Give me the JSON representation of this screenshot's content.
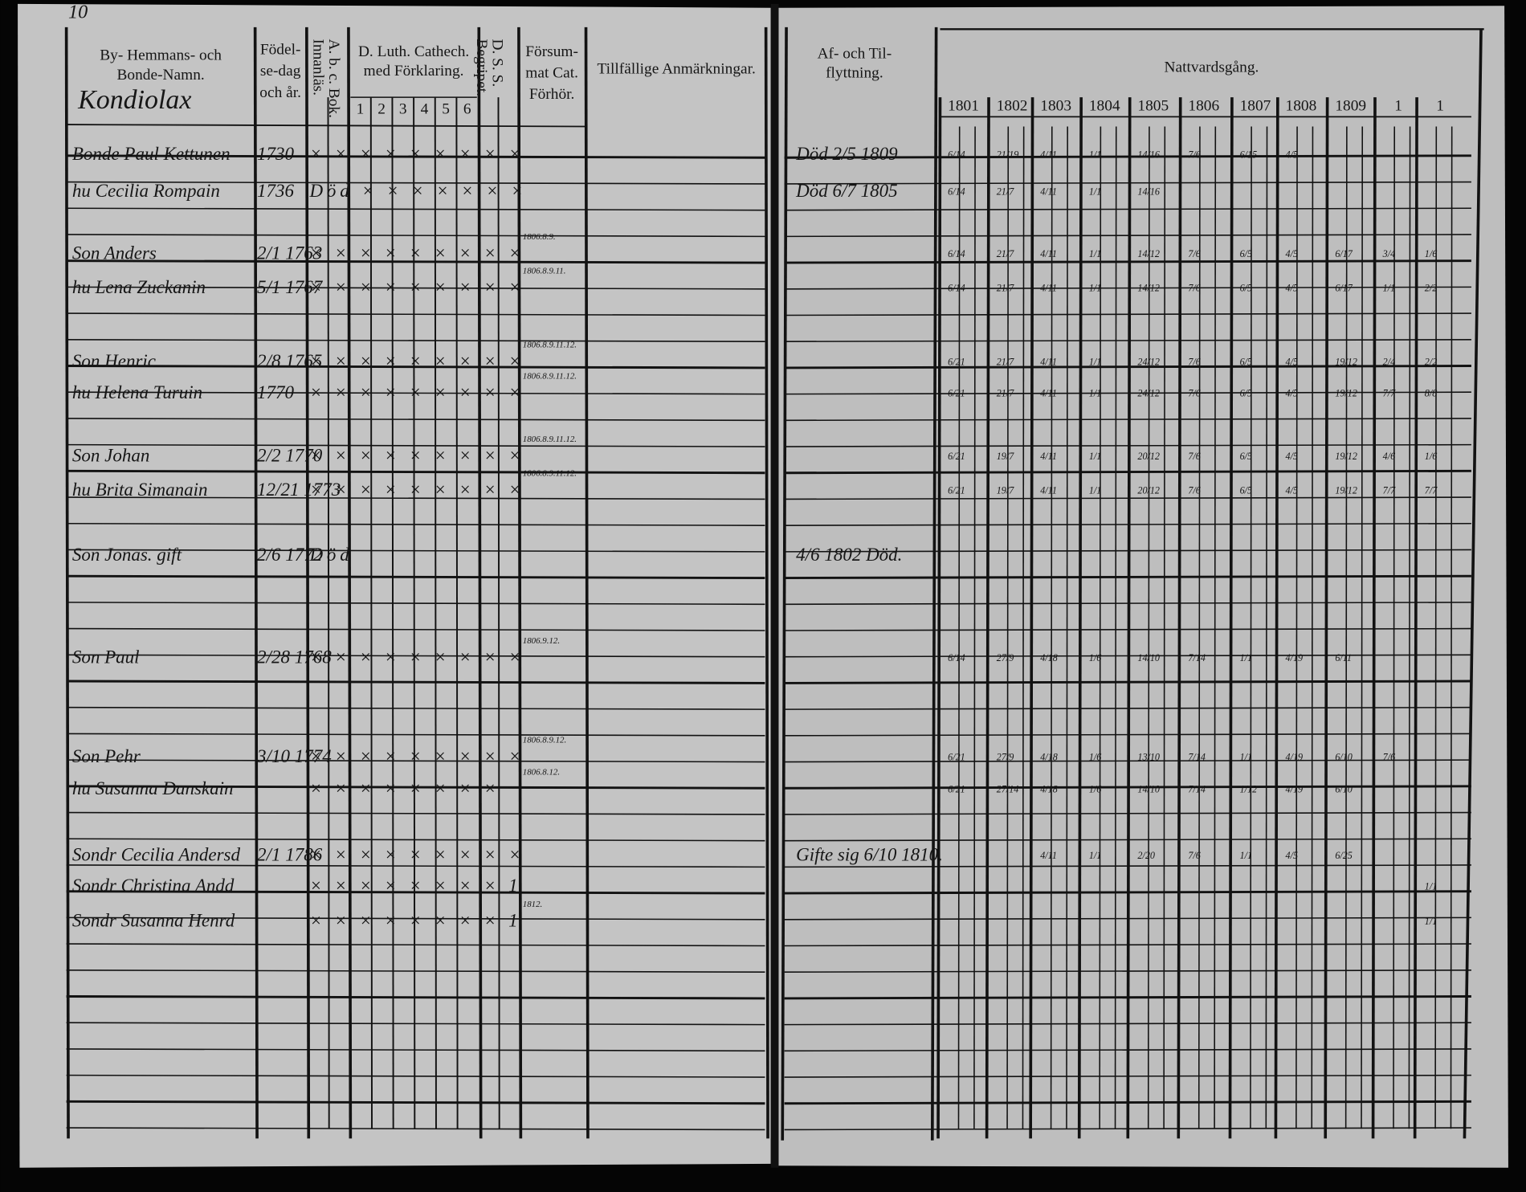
{
  "page_number": "10",
  "left_header": {
    "names": [
      "By- Hemmans- och",
      "Bonde-Namn."
    ],
    "birth": [
      "Födel-",
      "se-dag",
      "och år."
    ],
    "abc": [
      "A. b. c. Bok.",
      "Innanläs."
    ],
    "cathech": [
      "D. Luth. Cathech.",
      "med Förklaring."
    ],
    "cathech_parts": [
      "1",
      "2",
      "3",
      "4",
      "5",
      "6"
    ],
    "dss": [
      "D. S. S.",
      "Begripet."
    ],
    "forsummat": [
      "Försum-",
      "mat Cat.",
      "Förhör."
    ],
    "remarks": "Tillfällige Anmärkningar."
  },
  "right_header": {
    "moving": [
      "Af- och Til-",
      "flyttning."
    ],
    "communion": "Nattvardsgång.",
    "years": [
      "1801",
      "1802",
      "1803",
      "1804",
      "1805",
      "1806",
      "1807",
      "1808",
      "1809",
      "1",
      "1"
    ]
  },
  "village": "Kondiolax",
  "rows": [
    {
      "name": "Bonde Paul Kettunen",
      "birth": "1730",
      "marks": "× × × × × × × × ×",
      "moving": "Död 2/5 1809",
      "communion": [
        "6/14",
        "21/19",
        "4/11",
        "1/1",
        "14/16",
        "7/6",
        "6/15",
        "4/5"
      ]
    },
    {
      "name": "hu Cecilia Rompain",
      "birth": "1736",
      "marks": "Död × × × × × × ×",
      "moving": "Död 6/7 1805",
      "communion": [
        "6/14",
        "21/7",
        "4/11",
        "1/1",
        "14/16"
      ]
    },
    {
      "name": "Son Anders",
      "birth": "2/1 1763",
      "marks": "× × × × × × × × ×",
      "missed": "1806.8.9.",
      "communion": [
        "6/14",
        "21/7",
        "4/11",
        "1/1",
        "14/12",
        "7/6",
        "6/5",
        "4/5",
        "6/17",
        "3/4",
        "1/6"
      ]
    },
    {
      "name": "hu Lena Zuckanin",
      "birth": "5/1 1767",
      "marks": "× × × × × × × × ×",
      "missed": "1806.8.9.11.",
      "communion": [
        "6/14",
        "21/7",
        "4/11",
        "1/1",
        "14/12",
        "7/6",
        "6/5",
        "4/5",
        "6/17",
        "1/1",
        "2/2"
      ]
    },
    {
      "name": "Son Henric",
      "birth": "2/8 1765",
      "marks": "× × × × × × × × ×",
      "missed": "1806.8.9.11.12.",
      "communion": [
        "6/21",
        "21/7",
        "4/11",
        "1/1",
        "24/12",
        "7/6",
        "6/5",
        "4/5",
        "19/12",
        "2/4",
        "2/2"
      ]
    },
    {
      "name": "hu Helena Turuin",
      "birth": "1770",
      "marks": "× × × × × × × × ×",
      "missed": "1806.8.9.11.12.",
      "communion": [
        "6/21",
        "21/7",
        "4/11",
        "1/1",
        "24/12",
        "7/6",
        "6/5",
        "4/5",
        "19/12",
        "7/7",
        "8/8"
      ]
    },
    {
      "name": "Son Johan",
      "birth": "2/2 1770",
      "marks": "× × × × × × × × ×",
      "missed": "1806.8.9.11.12.",
      "communion": [
        "6/21",
        "19/7",
        "4/11",
        "1/1",
        "20/12",
        "7/6",
        "6/5",
        "4/5",
        "19/12",
        "4/6",
        "1/6"
      ]
    },
    {
      "name": "hu Brita Simanain",
      "birth": "12/21 1773",
      "marks": "× × × × × × × × ×",
      "missed": "1806.8.9.11.12.",
      "communion": [
        "6/21",
        "19/7",
        "4/11",
        "1/1",
        "20/12",
        "7/6",
        "6/5",
        "4/5",
        "19/12",
        "7/7",
        "7/7"
      ]
    },
    {
      "name": "Son Jonas. gift",
      "birth": "2/6 1772",
      "marks": "Död",
      "moving": "4/6 1802 Död."
    },
    {
      "name": "Son Paul",
      "birth": "2/28 1768",
      "marks": "× × × × × × × × ×",
      "missed": "1806.9.12.",
      "communion": [
        "6/14",
        "27/9",
        "4/18",
        "1/6",
        "14/10",
        "7/14",
        "1/1",
        "4/19",
        "6/11"
      ]
    },
    {
      "name": "Son Pehr",
      "birth": "3/10 1774",
      "marks": "× × × × × × × × ×",
      "missed": "1806.8.9.12.",
      "communion": [
        "6/21",
        "27/9",
        "4/18",
        "1/6",
        "13/10",
        "7/14",
        "1/1",
        "4/19",
        "6/10",
        "7/6"
      ]
    },
    {
      "name": "hu Susanna Danskain",
      "marks": "× × × × × × × ×",
      "missed": "1806.8.12.",
      "communion": [
        "6/21",
        "27/14",
        "4/18",
        "1/6",
        "14/10",
        "7/14",
        "1/12",
        "4/19",
        "6/10"
      ]
    },
    {
      "name": "Sondr Cecilia Andersd",
      "birth": "2/1 1786",
      "marks": "× × × × × × × × ×",
      "moving": "Gifte sig 6/10 1810.",
      "communion": [
        null,
        null,
        "4/11",
        "1/1",
        "2/20",
        "7/6",
        "1/1",
        "4/5",
        "6/25"
      ]
    },
    {
      "name": "Sondr Christina Andd",
      "marks": "× × × × × × × × 1",
      "communion": [
        null,
        null,
        null,
        null,
        null,
        null,
        null,
        null,
        null,
        null,
        "1/1"
      ]
    },
    {
      "name": "Sondr Susanna Henrd",
      "marks": "× × × × × × × × 1",
      "missed": "1812.",
      "communion": [
        null,
        null,
        null,
        null,
        null,
        null,
        null,
        null,
        null,
        null,
        "1/1"
      ]
    }
  ]
}
